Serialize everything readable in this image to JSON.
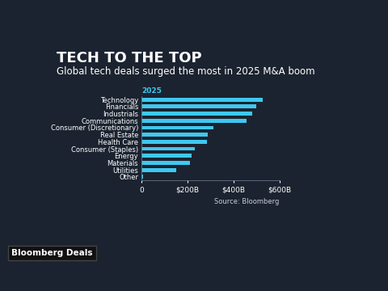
{
  "chart_data": {
    "type": "bar",
    "orientation": "horizontal",
    "title": "TECH TO THE TOP",
    "subtitle": "Global tech deals surged the most in 2025 M&A boom",
    "annotations": [
      "2025"
    ],
    "source": "Source: Bloomberg",
    "logo": "Bloomberg Deals",
    "categories": [
      "Technology",
      "Financials",
      "Industrials",
      "Communications",
      "Consumer (Discretionary)",
      "Real Estate",
      "Health Care",
      "Consumer (Staples)",
      "Energy",
      "Materials",
      "Utilities",
      "Other"
    ],
    "values": [
      529,
      501,
      483,
      456,
      313,
      289,
      285,
      230,
      219,
      212,
      150,
      7
    ],
    "color": "#3fc8f0",
    "xlim": [
      0,
      600
    ],
    "xticks": [
      0,
      {
        "value": 200,
        "label": "$200B"
      },
      {
        "value": 400,
        "label": "$400B"
      },
      {
        "value": 600,
        "label": "$600B"
      }
    ],
    "grid": false
  }
}
